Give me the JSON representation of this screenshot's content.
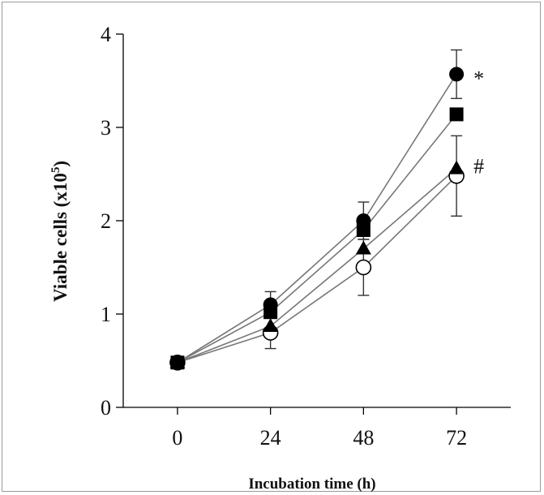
{
  "chart_data": {
    "type": "line",
    "title": "",
    "xlabel": "Incubation time (h)",
    "ylabel_main": "Viable cells (x10",
    "ylabel_sup": "5",
    "ylabel_end": ")",
    "x": [
      0,
      24,
      48,
      72
    ],
    "x_tick_labels": [
      "0",
      "24",
      "48",
      "72"
    ],
    "y_ticks": [
      0,
      1,
      2,
      3,
      4
    ],
    "y_tick_labels": [
      "0",
      "1",
      "2",
      "3",
      "4"
    ],
    "xlim": [
      -14,
      86
    ],
    "ylim": [
      0,
      4
    ],
    "grid": false,
    "legend": "none",
    "series": [
      {
        "marker": "filled-circle",
        "values": [
          0.48,
          1.1,
          2.0,
          3.57
        ],
        "error": [
          0,
          0.14,
          0.2,
          0.26
        ]
      },
      {
        "marker": "filled-square",
        "values": [
          0.48,
          1.02,
          1.9,
          3.14
        ],
        "error": [
          0,
          0,
          0,
          0
        ]
      },
      {
        "marker": "filled-triangle",
        "values": [
          0.48,
          0.87,
          1.7,
          2.56
        ],
        "error": [
          0,
          0,
          0,
          0
        ]
      },
      {
        "marker": "open-circle",
        "values": [
          0.48,
          0.8,
          1.5,
          2.48
        ],
        "error": [
          0,
          0.17,
          0.3,
          0.43
        ]
      }
    ],
    "annotations": [
      {
        "text": "*",
        "x": 72,
        "y": 3.57
      },
      {
        "text": "#",
        "x": 72,
        "y": 2.56
      }
    ],
    "colors": {
      "line": "#777777",
      "marker": "#000000",
      "axis": "#000000"
    }
  }
}
